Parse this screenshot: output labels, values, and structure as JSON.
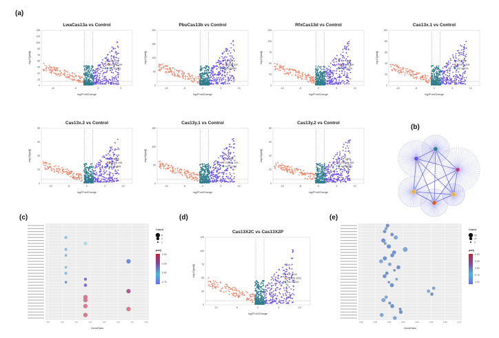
{
  "figure": {
    "panels": {
      "a": "(a)",
      "b": "(b)",
      "c": "(c)",
      "d": "(d)",
      "e": "(e)"
    }
  },
  "volcano_common": {
    "xlabel": "log2FoldChange",
    "ylabel": "-log10(padj)",
    "colors": {
      "up": "#6a4fe6",
      "down": "#f0856a",
      "no": "#2e7c8c"
    }
  },
  "volcano_plots": [
    {
      "title": "LwaCas13a vs Control",
      "up": "UP 1024",
      "down": "DOWN 249",
      "no": "NO 61301",
      "yticks": [
        "0",
        "15",
        "30",
        "45",
        "60",
        "75",
        "90",
        "105",
        "120",
        "135"
      ],
      "xticks": [
        "-10",
        "-5",
        "0",
        "5"
      ]
    },
    {
      "title": "PbuCas13b vs Control",
      "up": "UP 1910",
      "down": "DOWN 520",
      "no": "NO 60840",
      "yticks": [
        "0",
        "50",
        "100",
        "150",
        "200"
      ],
      "xticks": [
        "-10",
        "-5",
        "0",
        "5",
        "10"
      ]
    },
    {
      "title": "RfxCas13d vs Control",
      "up": "UP 1910",
      "down": "DOWN 346",
      "no": "NO 61014",
      "yticks": [
        "0",
        "25",
        "50",
        "75",
        "100",
        "125"
      ],
      "xticks": [
        "-10",
        "-5",
        "0",
        "5",
        "10"
      ]
    },
    {
      "title": "Cas13x.1 vs Control",
      "up": "UP 1251",
      "down": "DOWN 405",
      "no": "NO 60674",
      "yticks": [
        "0",
        "20",
        "40",
        "60",
        "80",
        "100"
      ],
      "xticks": [
        "-10",
        "-5",
        "0",
        "5",
        "10"
      ]
    },
    {
      "title": "Cas13x.2 vs Control",
      "up": "UP 1826",
      "down": "DOWN 184",
      "no": "NO 61448",
      "yticks": [
        "0",
        "20",
        "40",
        "60",
        "80"
      ],
      "xticks": [
        "-10",
        "-5",
        "0",
        "5",
        "10"
      ]
    },
    {
      "title": "Cas13y.1 vs Control",
      "up": "UP 931",
      "down": "DOWN 194",
      "no": "NO 61756",
      "yticks": [
        "0",
        "50",
        "100",
        "150"
      ],
      "xticks": [
        "-10",
        "-5",
        "0",
        "5",
        "10"
      ]
    },
    {
      "title": "Cas13y.2 vs Control",
      "up": "UP 1901",
      "down": "DOWN 484",
      "no": "NO 60516",
      "yticks": [
        "0",
        "20",
        "40",
        "60",
        "80"
      ],
      "xticks": [
        "-10",
        "-5",
        "0",
        "5",
        "10"
      ]
    }
  ],
  "volcano_d": {
    "title": "Cas13X2C vs Cas13X2P",
    "up": "UP 2144",
    "down": "DOWN 2631",
    "no": "NO 58316",
    "yticks": [
      "0",
      "25",
      "50",
      "75",
      "100",
      "125"
    ],
    "xticks": [
      "-10",
      "-5",
      "0",
      "5",
      "10"
    ]
  },
  "dotplot_c": {
    "xlabel": "GeneRatio",
    "count_title": "Count",
    "padj_title": "padj",
    "count_values": [
      "6",
      "4",
      "2"
    ],
    "padj_ticks": [
      "0.00",
      "0.25",
      "0.50",
      "0.75"
    ],
    "xticks": [
      "0.01",
      "0.02",
      "0.03",
      "0.04",
      "0.05",
      "0.06",
      "0.07",
      "0.08"
    ],
    "gradient": [
      "#c0223b",
      "#7a4fa0",
      "#4fb8d8",
      "#6a6ff0"
    ]
  },
  "dotplot_e": {
    "xlabel": "GeneRatio",
    "count_title": "Count",
    "padj_title": "padj",
    "count_values": [
      "50",
      "27",
      "3"
    ],
    "padj_ticks": [
      "0.00",
      "0.25",
      "0.50",
      "0.75",
      "1.00"
    ],
    "xticks": [
      "0.000",
      "0.025",
      "0.050",
      "0.075",
      "0.100",
      "0.125",
      "0.150",
      "0.175"
    ],
    "gradient": [
      "#c0223b",
      "#7a4fa0",
      "#4fb8d8",
      "#6a6ff0"
    ]
  },
  "network_b": {
    "hub_colors": [
      "#6a4fe6",
      "#c03a8a",
      "#e8b03a",
      "#e8b03a",
      "#d0602a",
      "#2e7c8c"
    ],
    "edge_color": "#3a3fd0"
  }
}
